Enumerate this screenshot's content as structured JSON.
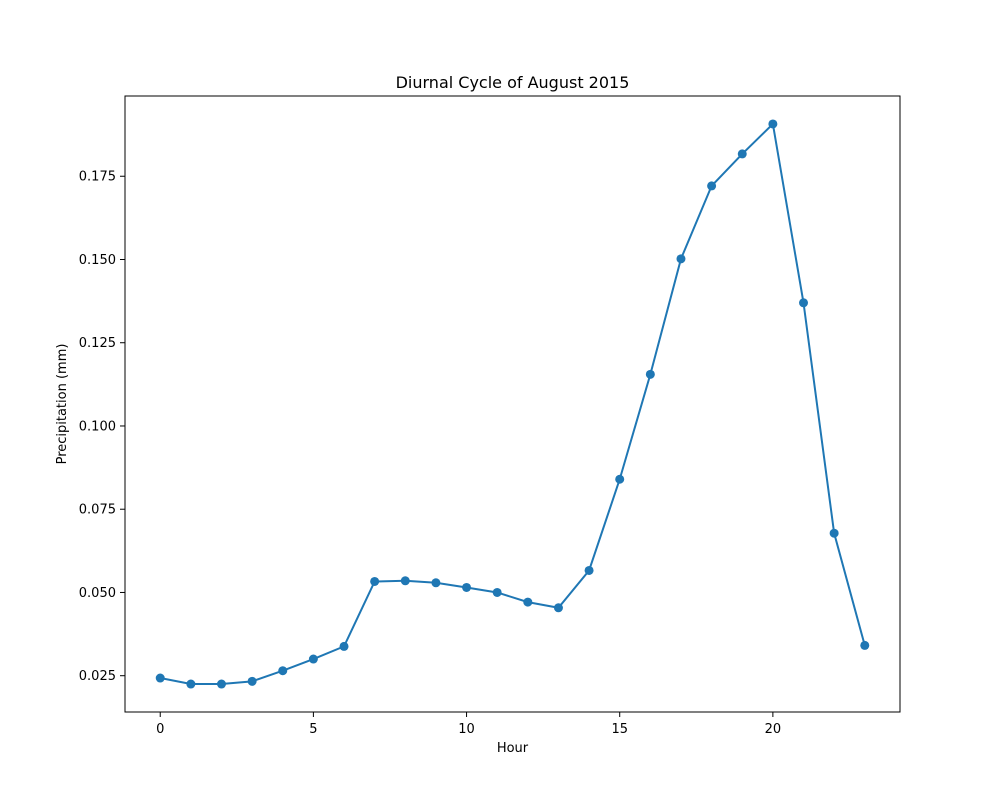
{
  "chart_data": {
    "type": "line",
    "title": "Diurnal Cycle of August 2015",
    "xlabel": "Hour",
    "ylabel": "Precipitation (mm)",
    "x": [
      0,
      1,
      2,
      3,
      4,
      5,
      6,
      7,
      8,
      9,
      10,
      11,
      12,
      13,
      14,
      15,
      16,
      17,
      18,
      19,
      20,
      21,
      22,
      23
    ],
    "series": [
      {
        "values": [
          0.0243,
          0.0225,
          0.0225,
          0.0233,
          0.0265,
          0.03,
          0.0338,
          0.0533,
          0.0535,
          0.0529,
          0.0515,
          0.05,
          0.0471,
          0.0454,
          0.0566,
          0.084,
          0.1155,
          0.1502,
          0.1721,
          0.1817,
          0.1907,
          0.137,
          0.0678,
          0.0341
        ],
        "color": "#1f77b4",
        "marker": "circle"
      }
    ],
    "xlim": [
      -1.15,
      24.15
    ],
    "ylim": [
      0.0141,
      0.1991
    ],
    "x_ticks": [
      0,
      5,
      10,
      15,
      20
    ],
    "x_tick_labels": [
      "0",
      "5",
      "10",
      "15",
      "20"
    ],
    "y_ticks": [
      0.025,
      0.05,
      0.075,
      0.1,
      0.125,
      0.15,
      0.175
    ],
    "y_tick_labels": [
      "0.025",
      "0.050",
      "0.075",
      "0.100",
      "0.125",
      "0.150",
      "0.175"
    ],
    "grid": false,
    "legend": "none"
  }
}
